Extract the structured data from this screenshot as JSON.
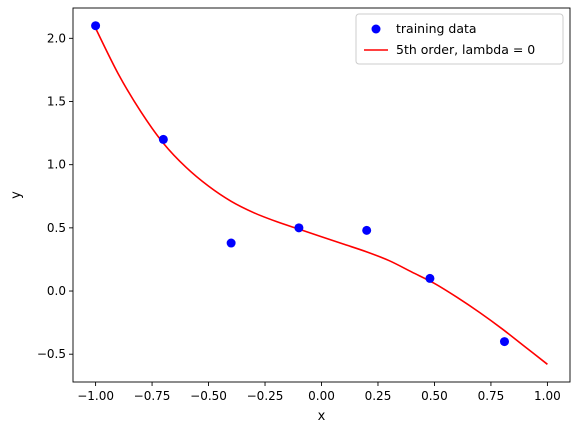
{
  "chart_data": {
    "type": "scatter",
    "title": "",
    "xlabel": "x",
    "ylabel": "y",
    "xlim": [
      -1.1,
      1.1
    ],
    "ylim": [
      -0.72,
      2.24
    ],
    "xticks": [
      -1.0,
      -0.75,
      -0.5,
      -0.25,
      0.0,
      0.25,
      0.5,
      0.75,
      1.0
    ],
    "xtick_labels": [
      "−1.00",
      "−0.75",
      "−0.50",
      "−0.25",
      "0.00",
      "0.25",
      "0.50",
      "0.75",
      "1.00"
    ],
    "yticks": [
      -0.5,
      0.0,
      0.5,
      1.0,
      1.5,
      2.0
    ],
    "ytick_labels": [
      "−0.5",
      "0.0",
      "0.5",
      "1.0",
      "1.5",
      "2.0"
    ],
    "grid": false,
    "legend_position": "top-right",
    "series": [
      {
        "name": "training data",
        "kind": "scatter",
        "color": "#0000ff",
        "x": [
          -1.0,
          -0.7,
          -0.4,
          -0.1,
          0.2,
          0.48,
          0.81
        ],
        "y": [
          2.1,
          1.2,
          0.38,
          0.5,
          0.48,
          0.1,
          -0.4
        ]
      },
      {
        "name": "5th order, lambda = 0",
        "kind": "line",
        "color": "#ff0000",
        "x": [
          -1.0,
          -0.9,
          -0.8,
          -0.7,
          -0.6,
          -0.5,
          -0.4,
          -0.3,
          -0.2,
          -0.1,
          0.0,
          0.1,
          0.2,
          0.3,
          0.4,
          0.5,
          0.6,
          0.7,
          0.8,
          0.9,
          1.0
        ],
        "y": [
          2.08,
          1.72,
          1.42,
          1.17,
          0.98,
          0.83,
          0.71,
          0.62,
          0.55,
          0.49,
          0.43,
          0.37,
          0.31,
          0.24,
          0.15,
          0.06,
          -0.05,
          -0.17,
          -0.3,
          -0.44,
          -0.58
        ]
      }
    ]
  }
}
